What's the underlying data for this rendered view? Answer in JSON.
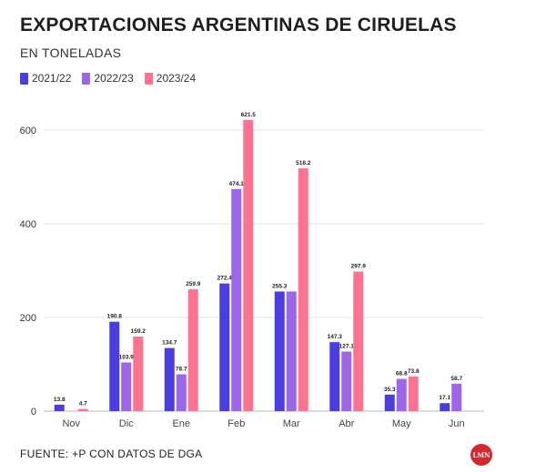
{
  "colors": {
    "s1": "#4b3ee0",
    "s2": "#9b66e8",
    "s3": "#ff7390"
  },
  "chart_data": {
    "type": "bar",
    "title": "EXPORTACIONES ARGENTINAS DE CIRUELAS",
    "subtitle": "EN TONELADAS",
    "categories": [
      "Nov",
      "Dic",
      "Ene",
      "Feb",
      "Mar",
      "Abr",
      "May",
      "Jun"
    ],
    "series": [
      {
        "name": "2021/22",
        "values": [
          13.8,
          190.8,
          134.7,
          272.4,
          255.3,
          147.3,
          35.3,
          17.1
        ],
        "labels": [
          "13.8",
          "190.8",
          "134.7",
          "272.4",
          "255.3",
          "147.3",
          "35.3",
          "17.1"
        ]
      },
      {
        "name": "2022/23",
        "values": [
          0,
          103.9,
          78.7,
          474.1,
          255.3,
          127.1,
          68.8,
          58.7
        ],
        "labels": [
          "",
          "103.9",
          "78.7",
          "474.1",
          "",
          "127.1",
          "68.8",
          "58.7"
        ]
      },
      {
        "name": "2023/24",
        "values": [
          4.7,
          159.2,
          259.9,
          621.5,
          518.2,
          297.9,
          73.8,
          null
        ],
        "labels": [
          "4.7",
          "159.2",
          "259.9",
          "621.5",
          "518.2",
          "297.9",
          "73.8",
          ""
        ]
      }
    ],
    "yticks": [
      "0",
      "200",
      "400",
      "600"
    ],
    "ylim": [
      0,
      660
    ],
    "grid": true,
    "legend": "top-left"
  },
  "footer": {
    "source": "FUENTE: +P CON DATOS DE DGA"
  },
  "logo": {
    "text": "LMN"
  }
}
